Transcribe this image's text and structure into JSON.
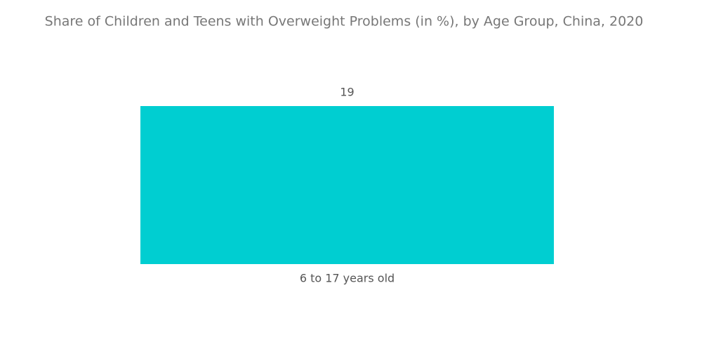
{
  "chart_data": {
    "type": "bar",
    "title": "Share of Children and Teens with Overweight Problems (in %), by Age Group, China, 2020",
    "categories": [
      "6 to 17 years old"
    ],
    "values": [
      19
    ],
    "color": "#00ced1"
  }
}
